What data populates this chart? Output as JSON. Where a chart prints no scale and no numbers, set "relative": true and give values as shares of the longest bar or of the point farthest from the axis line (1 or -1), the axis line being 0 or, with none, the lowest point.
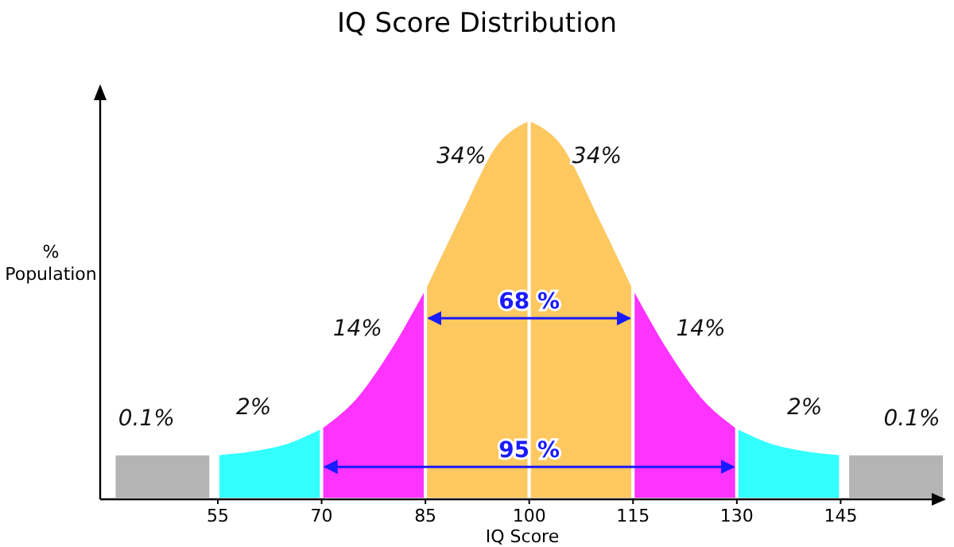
{
  "chart_data": {
    "type": "area",
    "title": "IQ Score Distribution",
    "xlabel": "IQ Score",
    "ylabel": "% Population",
    "relative": true,
    "xlim": [
      38,
      160
    ],
    "xticks": [
      55,
      70,
      85,
      100,
      115,
      130,
      145
    ],
    "series": [
      {
        "color": "#b4b4b4",
        "x": [
          40,
          54
        ],
        "values": [
          0.12,
          0.12
        ]
      },
      {
        "color": "#33ffff",
        "x": [
          55,
          60,
          65,
          70
        ],
        "values": [
          0.12,
          0.13,
          0.15,
          0.19
        ]
      },
      {
        "color": "#ff33ff",
        "x": [
          70,
          75,
          80,
          85
        ],
        "values": [
          0.19,
          0.27,
          0.4,
          0.56
        ]
      },
      {
        "color": "#fdc860",
        "x": [
          85,
          90,
          95,
          100
        ],
        "values": [
          0.56,
          0.75,
          0.93,
          1.0
        ]
      },
      {
        "color": "#fdc860",
        "x": [
          100,
          105,
          110,
          115
        ],
        "values": [
          1.0,
          0.93,
          0.75,
          0.56
        ]
      },
      {
        "color": "#ff33ff",
        "x": [
          115,
          120,
          125,
          130
        ],
        "values": [
          0.56,
          0.4,
          0.27,
          0.19
        ]
      },
      {
        "color": "#33ffff",
        "x": [
          130,
          135,
          140,
          145
        ],
        "values": [
          0.19,
          0.15,
          0.13,
          0.12
        ]
      },
      {
        "color": "#b4b4b4",
        "x": [
          146,
          160
        ],
        "values": [
          0.12,
          0.12
        ]
      }
    ],
    "annotations": [
      "0.1%",
      "2%",
      "14%",
      "34%",
      "34%",
      "14%",
      "2%",
      "0.1%",
      "68 %",
      "95 %"
    ]
  }
}
